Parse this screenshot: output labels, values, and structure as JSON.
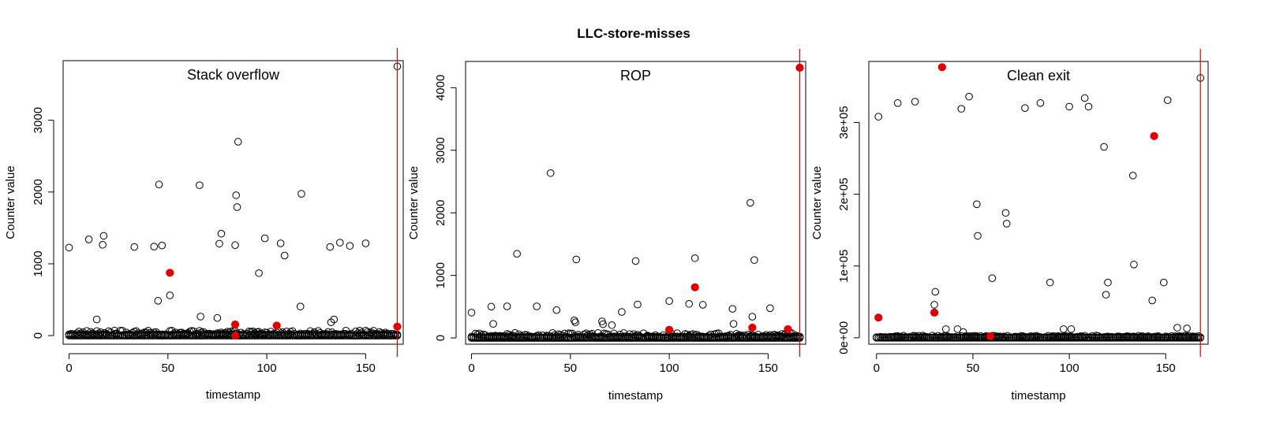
{
  "figure": {
    "title": "LLC-store-misses"
  },
  "chart_data": [
    {
      "type": "scatter",
      "title": "Stack overflow",
      "xlabel": "timestamp",
      "ylabel": "Counter value",
      "xlim": [
        -3,
        169
      ],
      "ylim": [
        -120,
        3830
      ],
      "xticks": [
        0,
        50,
        100,
        150
      ],
      "xtick_labels": [
        "0",
        "50",
        "100",
        "150"
      ],
      "yticks": [
        0,
        1000,
        2000,
        3000
      ],
      "ytick_labels": [
        "0",
        "1000",
        "2000",
        "3000"
      ],
      "vline_x": 166,
      "vline_color": "#e00000",
      "baseline": {
        "count": 167,
        "max": 70
      },
      "series": [
        {
          "name": "normal",
          "style": "open",
          "color": "#000000",
          "points": [
            [
              0,
              1225
            ],
            [
              10,
              1340
            ],
            [
              14,
              225
            ],
            [
              17,
              1265
            ],
            [
              17.5,
              1390
            ],
            [
              33,
              1235
            ],
            [
              43,
              1240
            ],
            [
              45,
              485
            ],
            [
              45.5,
              2105
            ],
            [
              47,
              1255
            ],
            [
              51,
              560
            ],
            [
              66,
              2095
            ],
            [
              66.5,
              265
            ],
            [
              75,
              245
            ],
            [
              76,
              1280
            ],
            [
              77,
              1420
            ],
            [
              84,
              1260
            ],
            [
              84.5,
              1955
            ],
            [
              85,
              1790
            ],
            [
              85.5,
              2700
            ],
            [
              96,
              870
            ],
            [
              99,
              1355
            ],
            [
              107,
              1285
            ],
            [
              109,
              1115
            ],
            [
              117,
              405
            ],
            [
              117.5,
              1975
            ],
            [
              132,
              1235
            ],
            [
              132.5,
              185
            ],
            [
              134,
              225
            ],
            [
              137,
              1295
            ],
            [
              142,
              1250
            ],
            [
              150,
              1285
            ],
            [
              166,
              3750
            ]
          ]
        },
        {
          "name": "attack",
          "style": "filled",
          "color": "#e00000",
          "points": [
            [
              51,
              875
            ],
            [
              84,
              155
            ],
            [
              84.2,
              0
            ],
            [
              105,
              140
            ],
            [
              166,
              125
            ]
          ]
        }
      ]
    },
    {
      "type": "scatter",
      "title": "ROP",
      "xlabel": "timestamp",
      "ylabel": "Counter value",
      "xlim": [
        -3,
        169
      ],
      "ylim": [
        -100,
        4420
      ],
      "xticks": [
        0,
        50,
        100,
        150
      ],
      "xtick_labels": [
        "0",
        "50",
        "100",
        "150"
      ],
      "yticks": [
        0,
        1000,
        2000,
        3000,
        4000
      ],
      "ytick_labels": [
        "0",
        "1000",
        "2000",
        "3000",
        "4000"
      ],
      "vline_x": 166,
      "vline_color": "#e00000",
      "baseline": {
        "count": 167,
        "max": 80
      },
      "series": [
        {
          "name": "normal",
          "style": "open",
          "color": "#000000",
          "points": [
            [
              0,
              405
            ],
            [
              10,
              500
            ],
            [
              11,
              225
            ],
            [
              18,
              505
            ],
            [
              23,
              1345
            ],
            [
              33,
              505
            ],
            [
              40,
              2635
            ],
            [
              43,
              445
            ],
            [
              52,
              280
            ],
            [
              52.5,
              250
            ],
            [
              53,
              1255
            ],
            [
              66,
              265
            ],
            [
              66.5,
              220
            ],
            [
              71,
              205
            ],
            [
              76,
              415
            ],
            [
              83,
              1230
            ],
            [
              84,
              535
            ],
            [
              100,
              590
            ],
            [
              110,
              545
            ],
            [
              113,
              1275
            ],
            [
              117,
              530
            ],
            [
              132,
              465
            ],
            [
              132.5,
              225
            ],
            [
              141,
              2160
            ],
            [
              142,
              340
            ],
            [
              143,
              1245
            ],
            [
              151,
              475
            ],
            [
              166,
              4320
            ]
          ]
        },
        {
          "name": "attack",
          "style": "filled",
          "color": "#e00000",
          "points": [
            [
              100,
              130
            ],
            [
              113,
              810
            ],
            [
              142,
              165
            ],
            [
              160,
              140
            ],
            [
              166,
              4320
            ]
          ]
        }
      ]
    },
    {
      "type": "scatter",
      "title": "Clean exit",
      "xlabel": "timestamp",
      "ylabel": "Counter value",
      "xlim": [
        -4,
        172
      ],
      "ylim": [
        -9000,
        385000
      ],
      "xticks": [
        0,
        50,
        100,
        150
      ],
      "xtick_labels": [
        "0",
        "50",
        "100",
        "150"
      ],
      "yticks": [
        0,
        100000,
        200000,
        300000
      ],
      "ytick_labels": [
        "0e+00",
        "1e+05",
        "2e+05",
        "3e+05"
      ],
      "vline_x": 168,
      "vline_color": "#e00000",
      "baseline": {
        "count": 169,
        "max": 3000
      },
      "series": [
        {
          "name": "normal",
          "style": "open",
          "color": "#000000",
          "points": [
            [
              1,
              308000
            ],
            [
              11,
              327000
            ],
            [
              20,
              329000
            ],
            [
              30,
              46000
            ],
            [
              30.5,
              64000
            ],
            [
              36,
              12000
            ],
            [
              42,
              12000
            ],
            [
              44,
              319000
            ],
            [
              45,
              8000
            ],
            [
              48,
              336000
            ],
            [
              52,
              186000
            ],
            [
              52.5,
              142000
            ],
            [
              60,
              83000
            ],
            [
              67,
              174000
            ],
            [
              67.5,
              159000
            ],
            [
              77,
              320000
            ],
            [
              85,
              327000
            ],
            [
              90,
              77000
            ],
            [
              97,
              12000
            ],
            [
              100,
              322000
            ],
            [
              101,
              12000
            ],
            [
              108,
              334000
            ],
            [
              110,
              322000
            ],
            [
              118,
              266000
            ],
            [
              119,
              60000
            ],
            [
              120,
              77000
            ],
            [
              133,
              226000
            ],
            [
              133.5,
              102000
            ],
            [
              143,
              52000
            ],
            [
              149,
              77000
            ],
            [
              151,
              331000
            ],
            [
              156,
              14000
            ],
            [
              161,
              13000
            ],
            [
              168,
              362000
            ]
          ]
        },
        {
          "name": "attack",
          "style": "filled",
          "color": "#e00000",
          "points": [
            [
              1,
              28000
            ],
            [
              30,
              35000
            ],
            [
              34,
              377000
            ],
            [
              59,
              2000
            ],
            [
              144,
              281000
            ]
          ]
        }
      ]
    }
  ]
}
